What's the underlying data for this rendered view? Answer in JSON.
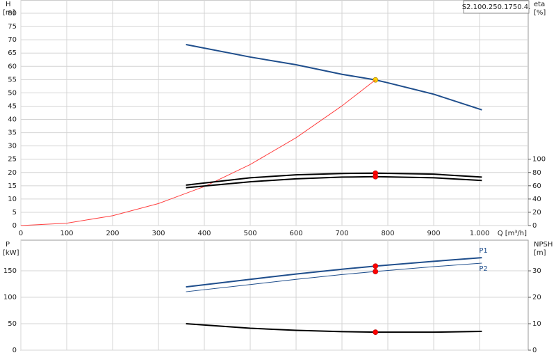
{
  "chart_data": [
    {
      "type": "line",
      "y_label": "H",
      "y_unit": "[m]",
      "y2_label": "eta",
      "y2_unit": "[%]",
      "x_label": "Q [m³/h]",
      "annotation": "S2.100.250.1750.4.",
      "xlim": [
        0,
        1106
      ],
      "xticks": [
        0,
        100,
        200,
        300,
        400,
        500,
        600,
        700,
        800,
        900,
        {
          "value": 1000,
          "label": "1.000"
        }
      ],
      "ylim": [
        0,
        85
      ],
      "yticks": [
        0,
        5,
        10,
        15,
        20,
        25,
        30,
        35,
        40,
        45,
        50,
        55,
        60,
        65,
        70,
        75,
        80
      ],
      "y2lim": [
        0,
        340
      ],
      "y2ticks": [
        0,
        20,
        40,
        60,
        80,
        100
      ],
      "grid": true,
      "series": [
        {
          "color": "#1f4e8c",
          "width": 2,
          "x": [
            360,
            500,
            600,
            700,
            773,
            800,
            900,
            1005
          ],
          "values": [
            68.2,
            63.5,
            60.6,
            57,
            54.9,
            53.8,
            49.5,
            43.6
          ],
          "point": {
            "x": 773,
            "y": 54.9,
            "color": "#ffd400"
          }
        },
        {
          "color": "#ff4040",
          "width": 1,
          "x": [
            0,
            100,
            200,
            300,
            400,
            500,
            600,
            700,
            773
          ],
          "values": [
            0,
            0.9,
            3.7,
            8.3,
            14.7,
            23,
            33.1,
            45.1,
            54.9
          ]
        },
        {
          "color": "#000000",
          "width": 2,
          "axis": "y2",
          "x": [
            360,
            500,
            600,
            700,
            773,
            900,
            1005
          ],
          "values": [
            61,
            72,
            76.5,
            78.5,
            79,
            77.5,
            73
          ],
          "point": {
            "x": 773,
            "y": 79,
            "color": "#ff0000"
          }
        },
        {
          "color": "#000000",
          "width": 2,
          "axis": "y2",
          "x": [
            360,
            500,
            600,
            700,
            773,
            900,
            1005
          ],
          "values": [
            57,
            66,
            70.5,
            73,
            73.7,
            72,
            68
          ],
          "point": {
            "x": 773,
            "y": 73.7,
            "color": "#ff0000"
          }
        }
      ]
    },
    {
      "type": "line",
      "y_label": "P",
      "y_unit": "[kW]",
      "y2_label": "NPSH",
      "y2_unit": "[m]",
      "xlim": [
        0,
        1106
      ],
      "xgrid": [
        0,
        100,
        200,
        300,
        400,
        500,
        600,
        700,
        800,
        900,
        1000
      ],
      "ylim": [
        0,
        208
      ],
      "yticks": [
        0,
        50,
        100,
        150
      ],
      "y2lim": [
        0,
        41.6
      ],
      "y2ticks": [
        0,
        10,
        20,
        30
      ],
      "grid": true,
      "series": [
        {
          "name": "P1",
          "color": "#1f4e8c",
          "width": 2,
          "x": [
            360,
            500,
            600,
            700,
            773,
            900,
            1005
          ],
          "values": [
            119.7,
            134,
            144,
            153,
            159,
            168,
            175
          ],
          "point": {
            "x": 773,
            "y": 159,
            "color": "#ff0000"
          }
        },
        {
          "name": "P2",
          "color": "#1f4e8c",
          "width": 1,
          "x": [
            360,
            500,
            600,
            700,
            773,
            900,
            1005
          ],
          "values": [
            110.5,
            124,
            134,
            143,
            148.7,
            158,
            164.5
          ],
          "point": {
            "x": 773,
            "y": 148.7,
            "color": "#ff0000"
          }
        },
        {
          "color": "#000000",
          "width": 2,
          "axis": "y2",
          "x": [
            360,
            500,
            600,
            700,
            773,
            900,
            1005
          ],
          "values": [
            10,
            8.3,
            7.5,
            7.0,
            6.8,
            6.8,
            7.1
          ],
          "point": {
            "x": 773,
            "y": 6.8,
            "color": "#ff0000"
          }
        }
      ]
    }
  ]
}
